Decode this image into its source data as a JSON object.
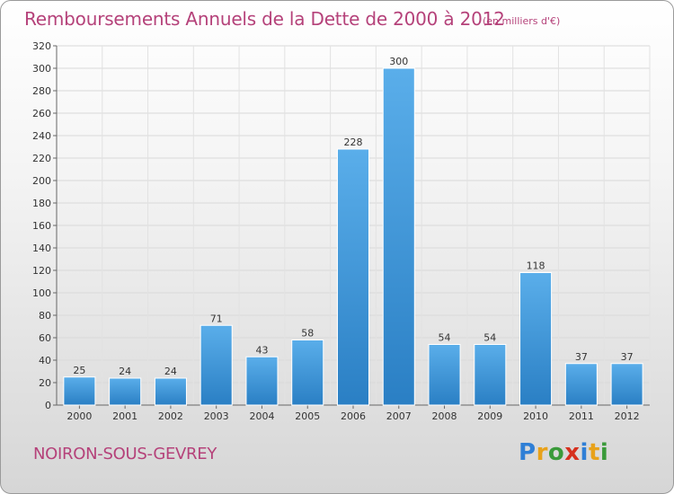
{
  "header": {
    "title": "Remboursements Annuels de la Dette de 2000 à 2012",
    "subtitle": "(en milliers d'€)"
  },
  "footer": {
    "commune": "NOIRON-SOUS-GEVREY",
    "brand_letters": [
      "P",
      "r",
      "o",
      "x",
      "i",
      "t",
      "i"
    ],
    "brand_colors": [
      "#2f7fd6",
      "#e8a21a",
      "#3a9a3a",
      "#d6311f",
      "#2f7fd6",
      "#e8a21a",
      "#3a9a3a"
    ]
  },
  "chart_data": {
    "type": "bar",
    "categories": [
      "2000",
      "2001",
      "2002",
      "2003",
      "2004",
      "2005",
      "2006",
      "2007",
      "2008",
      "2009",
      "2010",
      "2011",
      "2012"
    ],
    "values": [
      25,
      24,
      24,
      71,
      43,
      58,
      228,
      300,
      54,
      54,
      118,
      37,
      37
    ],
    "title": "Remboursements Annuels de la Dette de 2000 à 2012",
    "subtitle": "(en milliers d'€)",
    "ylim": [
      0,
      320
    ],
    "yticks": [
      0,
      20,
      40,
      60,
      80,
      100,
      120,
      140,
      160,
      180,
      200,
      220,
      240,
      260,
      280,
      300,
      320
    ],
    "grid": true,
    "bar_color": "#3a96dc",
    "data_labels": true
  }
}
